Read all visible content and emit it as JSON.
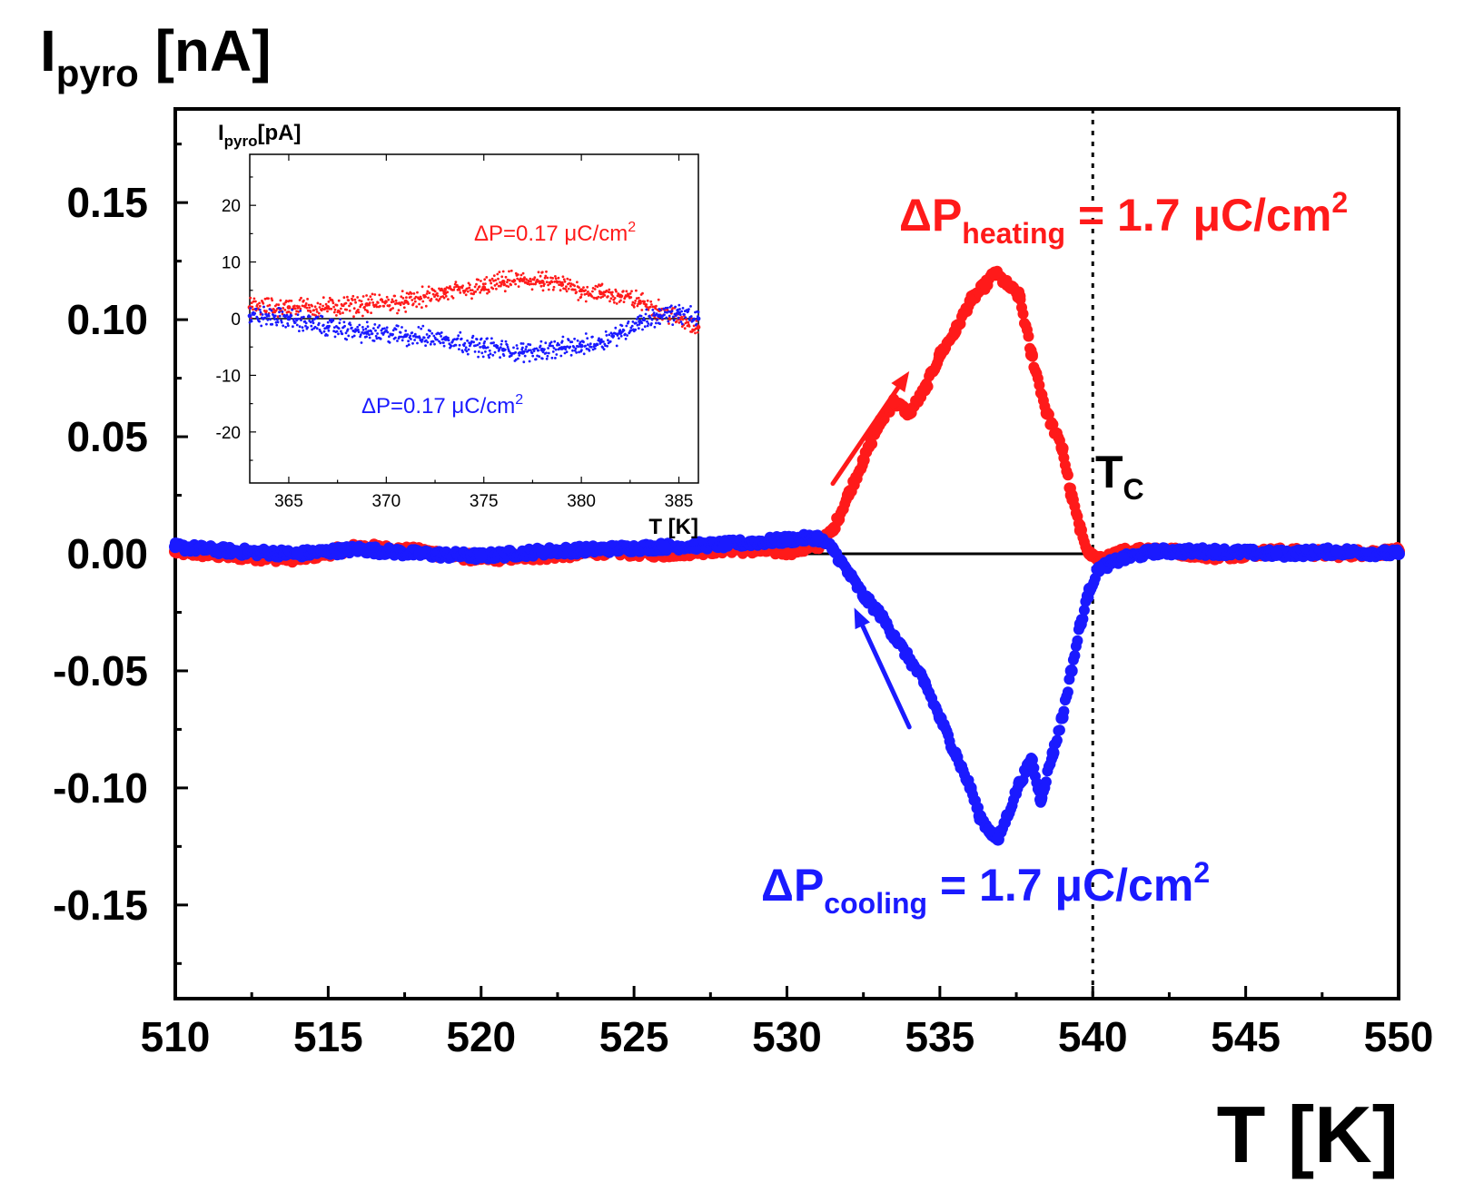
{
  "colors": {
    "heating": "#ff1a1a",
    "cooling": "#1a1aff",
    "axis": "#000000"
  },
  "chart_data": [
    {
      "type": "scatter",
      "role": "main",
      "ylabel_main": "I",
      "ylabel_sub": "pyro",
      "ylabel_unit": " [nA]",
      "xlabel": "T [K]",
      "xlim": [
        510,
        550
      ],
      "ylim": [
        -0.19,
        0.19
      ],
      "xticks": [
        510,
        515,
        520,
        525,
        530,
        535,
        540,
        545,
        550
      ],
      "yticks": [
        -0.15,
        -0.1,
        -0.05,
        0.0,
        0.05,
        0.1,
        0.15
      ],
      "ytick_labels": [
        "-0.15",
        "-0.10",
        "-0.05",
        "0.00",
        "0.05",
        "0.10",
        "0.15"
      ],
      "zero_line": true,
      "vline_x": 540.0,
      "tc_label": {
        "main": "T",
        "sub": "C"
      },
      "series": [
        {
          "name": "heating",
          "color": "#ff1a1a",
          "x": [
            510,
            512,
            514,
            516,
            518,
            520,
            522,
            524,
            526,
            528,
            530,
            531,
            531.5,
            532,
            532.5,
            533,
            533.5,
            534,
            534.5,
            535,
            535.5,
            536,
            536.5,
            536.8,
            537.2,
            537.6,
            538,
            538.5,
            539,
            539.3,
            539.6,
            539.9,
            540.3,
            541,
            542,
            544,
            546,
            548,
            550
          ],
          "y": [
            0.001,
            -0.001,
            -0.002,
            0.003,
            0.001,
            -0.002,
            -0.001,
            0.001,
            0.0,
            0.002,
            0.001,
            0.003,
            0.01,
            0.025,
            0.04,
            0.055,
            0.065,
            0.06,
            0.07,
            0.085,
            0.095,
            0.108,
            0.115,
            0.12,
            0.115,
            0.11,
            0.085,
            0.06,
            0.045,
            0.025,
            0.01,
            0.0,
            -0.003,
            0.001,
            0.002,
            -0.001,
            0.001,
            0.0,
            0.001
          ]
        },
        {
          "name": "cooling",
          "color": "#1a1aff",
          "x": [
            510,
            512,
            514,
            516,
            518,
            520,
            522,
            524,
            526,
            528,
            530,
            531,
            531.5,
            532,
            532.5,
            533,
            533.5,
            534,
            534.5,
            535,
            535.5,
            536,
            536.3,
            536.6,
            536.9,
            537.2,
            537.6,
            538,
            538.3,
            538.7,
            539,
            539.3,
            539.6,
            539.9,
            540.2,
            541,
            542,
            544,
            546,
            548,
            550
          ],
          "y": [
            0.003,
            0.001,
            0.0,
            0.002,
            0.0,
            -0.001,
            0.001,
            0.002,
            0.003,
            0.004,
            0.006,
            0.007,
            0.002,
            -0.008,
            -0.018,
            -0.025,
            -0.035,
            -0.045,
            -0.055,
            -0.07,
            -0.085,
            -0.1,
            -0.112,
            -0.118,
            -0.122,
            -0.112,
            -0.098,
            -0.088,
            -0.105,
            -0.085,
            -0.07,
            -0.05,
            -0.03,
            -0.015,
            -0.006,
            -0.002,
            0.001,
            0.001,
            0.0,
            0.001,
            0.0
          ]
        }
      ],
      "annotations": [
        {
          "id": "heating",
          "main": "ΔP",
          "sub": "heating",
          "rest": " = 1.7 μC/cm",
          "sup": "2",
          "color": "#ff1a1a"
        },
        {
          "id": "cooling",
          "main": "ΔP",
          "sub": "cooling",
          "rest": " = 1.7 μC/cm",
          "sup": "2",
          "color": "#1a1aff"
        }
      ],
      "arrows": [
        {
          "id": "heating-arrow",
          "color": "#ff1a1a",
          "from": [
            531.5,
            0.03
          ],
          "to": [
            534,
            0.078
          ]
        },
        {
          "id": "cooling-arrow",
          "color": "#1a1aff",
          "from": [
            534,
            -0.074
          ],
          "to": [
            532.2,
            -0.023
          ]
        }
      ]
    },
    {
      "type": "scatter",
      "role": "inset",
      "ylabel_main": "I",
      "ylabel_sub": "pyro",
      "ylabel_unit": "[pA]",
      "xlabel": "T [K]",
      "xlim": [
        363,
        386
      ],
      "ylim": [
        -29,
        29
      ],
      "xticks": [
        365,
        370,
        375,
        380,
        385
      ],
      "yticks": [
        -20,
        -10,
        0,
        10,
        20
      ],
      "ytick_labels": [
        "-20",
        "-10",
        "0",
        "10",
        "20"
      ],
      "zero_line": true,
      "series": [
        {
          "name": "heating",
          "color": "#ff1a1a",
          "x": [
            363,
            365,
            367,
            369,
            371,
            373,
            375,
            376,
            377,
            378,
            379,
            380,
            381,
            382,
            383,
            384,
            385,
            386
          ],
          "y": [
            2,
            2,
            2,
            2.5,
            3,
            4.5,
            5.5,
            6.5,
            6.8,
            6.5,
            6,
            5,
            4.5,
            4,
            3,
            1.5,
            0,
            -1.5
          ]
        },
        {
          "name": "cooling",
          "color": "#1a1aff",
          "x": [
            363,
            365,
            367,
            369,
            371,
            373,
            375,
            376,
            377,
            378,
            379,
            380,
            381,
            382,
            383,
            384,
            385,
            386
          ],
          "y": [
            0.5,
            0,
            -1.5,
            -2.5,
            -3,
            -3.5,
            -5,
            -5.5,
            -6,
            -5.5,
            -5.2,
            -4.8,
            -4,
            -2.5,
            -0.5,
            0.5,
            1,
            0
          ]
        }
      ],
      "annotations": [
        {
          "id": "inset-heating",
          "text": "ΔP=0.17 μC/cm",
          "sup": "2",
          "color": "#ff1a1a"
        },
        {
          "id": "inset-cooling",
          "text": "ΔP=0.17 μC/cm",
          "sup": "2",
          "color": "#1a1aff"
        }
      ]
    }
  ]
}
